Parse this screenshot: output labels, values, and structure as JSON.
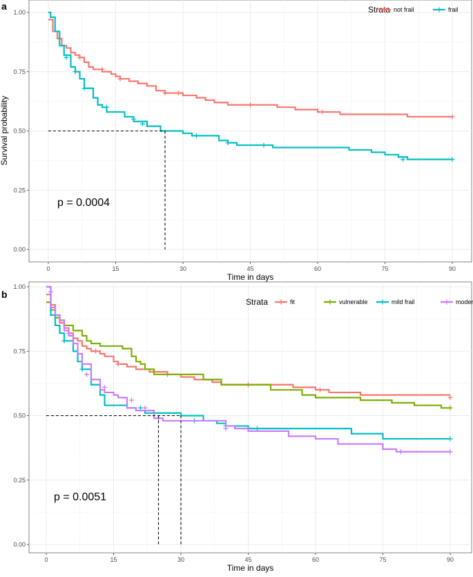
{
  "chart_data": [
    {
      "type": "line",
      "subtype": "kaplan-meier",
      "panel": "a",
      "xlabel": "Time in days",
      "ylabel": "Survival probability",
      "xlim": [
        0,
        90
      ],
      "ylim": [
        0,
        1
      ],
      "xticks": [
        0,
        15,
        30,
        45,
        60,
        75,
        90
      ],
      "yticks": [
        0.0,
        0.25,
        0.5,
        0.75,
        1.0
      ],
      "ytick_labels": [
        "0.00",
        "0.25",
        "0.50",
        "0.75",
        "1.00"
      ],
      "grid": true,
      "legend": {
        "title": "Strata",
        "position": "top-right"
      },
      "annotation": "p = 0.0004",
      "median_lines": [
        26
      ],
      "series": [
        {
          "name": "not frail",
          "color": "#F8766D",
          "steps": [
            [
              0,
              0.97
            ],
            [
              1,
              0.92
            ],
            [
              2,
              0.89
            ],
            [
              3,
              0.86
            ],
            [
              4,
              0.85
            ],
            [
              5,
              0.83
            ],
            [
              6,
              0.82
            ],
            [
              7,
              0.81
            ],
            [
              8,
              0.79
            ],
            [
              9,
              0.77
            ],
            [
              10,
              0.76
            ],
            [
              12,
              0.75
            ],
            [
              14,
              0.74
            ],
            [
              15,
              0.73
            ],
            [
              16,
              0.72
            ],
            [
              18,
              0.71
            ],
            [
              20,
              0.7
            ],
            [
              22,
              0.69
            ],
            [
              24,
              0.67
            ],
            [
              26,
              0.66
            ],
            [
              30,
              0.65
            ],
            [
              33,
              0.64
            ],
            [
              35,
              0.63
            ],
            [
              37,
              0.62
            ],
            [
              40,
              0.61
            ],
            [
              51,
              0.6
            ],
            [
              55,
              0.59
            ],
            [
              60,
              0.58
            ],
            [
              65,
              0.57
            ],
            [
              80,
              0.56
            ]
          ],
          "end": 90,
          "censors": [
            [
              7,
              0.81
            ],
            [
              12,
              0.76
            ],
            [
              16,
              0.72
            ],
            [
              26,
              0.66
            ],
            [
              29,
              0.66
            ],
            [
              45,
              0.61
            ],
            [
              61,
              0.58
            ],
            [
              90,
              0.56
            ]
          ]
        },
        {
          "name": "frail",
          "color": "#00BFC4",
          "steps": [
            [
              0,
              1.0
            ],
            [
              0.5,
              0.98
            ],
            [
              1.5,
              0.92
            ],
            [
              2.5,
              0.86
            ],
            [
              3.5,
              0.82
            ],
            [
              5,
              0.77
            ],
            [
              6,
              0.75
            ],
            [
              7,
              0.72
            ],
            [
              8,
              0.68
            ],
            [
              10,
              0.64
            ],
            [
              11,
              0.61
            ],
            [
              12,
              0.6
            ],
            [
              13,
              0.58
            ],
            [
              17,
              0.56
            ],
            [
              19,
              0.54
            ],
            [
              22,
              0.52
            ],
            [
              25,
              0.5
            ],
            [
              30,
              0.49
            ],
            [
              32,
              0.48
            ],
            [
              38,
              0.46
            ],
            [
              40,
              0.45
            ],
            [
              42,
              0.44
            ],
            [
              47,
              0.44
            ],
            [
              50,
              0.43
            ],
            [
              67,
              0.42
            ],
            [
              72,
              0.41
            ],
            [
              75,
              0.4
            ],
            [
              78,
              0.39
            ],
            [
              80,
              0.38
            ]
          ],
          "end": 90,
          "censors": [
            [
              4,
              0.81
            ],
            [
              6,
              0.75
            ],
            [
              8,
              0.68
            ],
            [
              13,
              0.6
            ],
            [
              19,
              0.55
            ],
            [
              21,
              0.53
            ],
            [
              33,
              0.48
            ],
            [
              40,
              0.45
            ],
            [
              48,
              0.44
            ],
            [
              79,
              0.38
            ],
            [
              90,
              0.38
            ]
          ]
        }
      ]
    },
    {
      "type": "line",
      "subtype": "kaplan-meier",
      "panel": "b",
      "xlabel": "Time in days",
      "ylabel": "",
      "xlim": [
        0,
        90
      ],
      "ylim": [
        0,
        1
      ],
      "xticks": [
        0,
        15,
        30,
        45,
        60,
        75,
        90
      ],
      "yticks": [
        0.0,
        0.25,
        0.5,
        0.75,
        1.0
      ],
      "ytick_labels": [
        "0.00",
        "0.25",
        "0.50",
        "0.75",
        "1.00"
      ],
      "grid": true,
      "legend": {
        "title": "Strata",
        "position": "top-right"
      },
      "annotation": "p = 0.0051",
      "median_lines": [
        25,
        30
      ],
      "series": [
        {
          "name": "fit",
          "color": "#F8766D",
          "steps": [
            [
              0,
              0.97
            ],
            [
              1,
              0.93
            ],
            [
              2,
              0.89
            ],
            [
              3,
              0.86
            ],
            [
              4,
              0.84
            ],
            [
              5,
              0.82
            ],
            [
              6,
              0.8
            ],
            [
              7,
              0.79
            ],
            [
              8,
              0.77
            ],
            [
              9,
              0.76
            ],
            [
              10,
              0.75
            ],
            [
              12,
              0.74
            ],
            [
              13,
              0.73
            ],
            [
              15,
              0.71
            ],
            [
              16,
              0.7
            ],
            [
              18,
              0.69
            ],
            [
              20,
              0.68
            ],
            [
              23,
              0.67
            ],
            [
              27,
              0.66
            ],
            [
              30,
              0.65
            ],
            [
              33,
              0.64
            ],
            [
              37,
              0.63
            ],
            [
              39,
              0.62
            ],
            [
              55,
              0.61
            ],
            [
              60,
              0.6
            ],
            [
              63,
              0.59
            ],
            [
              70,
              0.58
            ],
            [
              80,
              0.58
            ]
          ],
          "end": 90,
          "censors": [
            [
              11,
              0.75
            ],
            [
              16,
              0.7
            ],
            [
              27,
              0.66
            ],
            [
              45,
              0.62
            ],
            [
              61,
              0.6
            ],
            [
              90,
              0.57
            ]
          ]
        },
        {
          "name": "vulnerable",
          "color": "#7CAE00",
          "steps": [
            [
              0,
              0.94
            ],
            [
              1,
              0.91
            ],
            [
              2,
              0.88
            ],
            [
              3,
              0.87
            ],
            [
              4,
              0.85
            ],
            [
              6,
              0.83
            ],
            [
              8,
              0.81
            ],
            [
              9,
              0.79
            ],
            [
              10,
              0.78
            ],
            [
              12,
              0.77
            ],
            [
              17,
              0.76
            ],
            [
              19,
              0.73
            ],
            [
              20,
              0.71
            ],
            [
              21,
              0.7
            ],
            [
              22,
              0.68
            ],
            [
              24,
              0.66
            ],
            [
              35,
              0.64
            ],
            [
              39,
              0.62
            ],
            [
              50,
              0.6
            ],
            [
              57,
              0.58
            ],
            [
              60,
              0.57
            ],
            [
              70,
              0.56
            ],
            [
              77,
              0.55
            ],
            [
              82,
              0.54
            ],
            [
              88,
              0.53
            ]
          ],
          "end": 90,
          "censors": [
            [
              90,
              0.53
            ]
          ]
        },
        {
          "name": "mild frail",
          "color": "#00BFC4",
          "steps": [
            [
              0,
              1.0
            ],
            [
              1,
              0.89
            ],
            [
              2,
              0.85
            ],
            [
              3,
              0.82
            ],
            [
              4,
              0.79
            ],
            [
              6,
              0.75
            ],
            [
              7,
              0.71
            ],
            [
              8,
              0.68
            ],
            [
              10,
              0.62
            ],
            [
              12,
              0.58
            ],
            [
              13,
              0.54
            ],
            [
              18,
              0.53
            ],
            [
              20,
              0.52
            ],
            [
              22,
              0.51
            ],
            [
              30,
              0.5
            ],
            [
              35,
              0.48
            ],
            [
              38,
              0.47
            ],
            [
              40,
              0.46
            ],
            [
              45,
              0.45
            ],
            [
              68,
              0.43
            ],
            [
              75,
              0.41
            ]
          ],
          "end": 90,
          "censors": [
            [
              4,
              0.79
            ],
            [
              8,
              0.68
            ],
            [
              21,
              0.53
            ],
            [
              33,
              0.48
            ],
            [
              40,
              0.46
            ],
            [
              47,
              0.45
            ],
            [
              90,
              0.41
            ]
          ]
        },
        {
          "name": "moderate to severe",
          "color": "#C77CFF",
          "steps": [
            [
              0,
              1.0
            ],
            [
              1,
              0.92
            ],
            [
              2,
              0.89
            ],
            [
              3,
              0.87
            ],
            [
              4,
              0.83
            ],
            [
              5,
              0.81
            ],
            [
              6,
              0.78
            ],
            [
              7,
              0.74
            ],
            [
              8,
              0.7
            ],
            [
              10,
              0.64
            ],
            [
              12,
              0.6
            ],
            [
              13,
              0.59
            ],
            [
              15,
              0.58
            ],
            [
              16,
              0.57
            ],
            [
              18,
              0.53
            ],
            [
              20,
              0.52
            ],
            [
              24,
              0.49
            ],
            [
              26,
              0.48
            ],
            [
              40,
              0.46
            ],
            [
              42,
              0.45
            ],
            [
              45,
              0.44
            ],
            [
              54,
              0.42
            ],
            [
              60,
              0.41
            ],
            [
              65,
              0.39
            ],
            [
              75,
              0.37
            ],
            [
              78,
              0.36
            ]
          ],
          "end": 90,
          "censors": [
            [
              1,
              0.98
            ],
            [
              5,
              0.82
            ],
            [
              9,
              0.66
            ],
            [
              13,
              0.61
            ],
            [
              19,
              0.56
            ],
            [
              22,
              0.53
            ],
            [
              25,
              0.49
            ],
            [
              40,
              0.45
            ],
            [
              79,
              0.36
            ],
            [
              90,
              0.36
            ]
          ]
        }
      ]
    }
  ]
}
